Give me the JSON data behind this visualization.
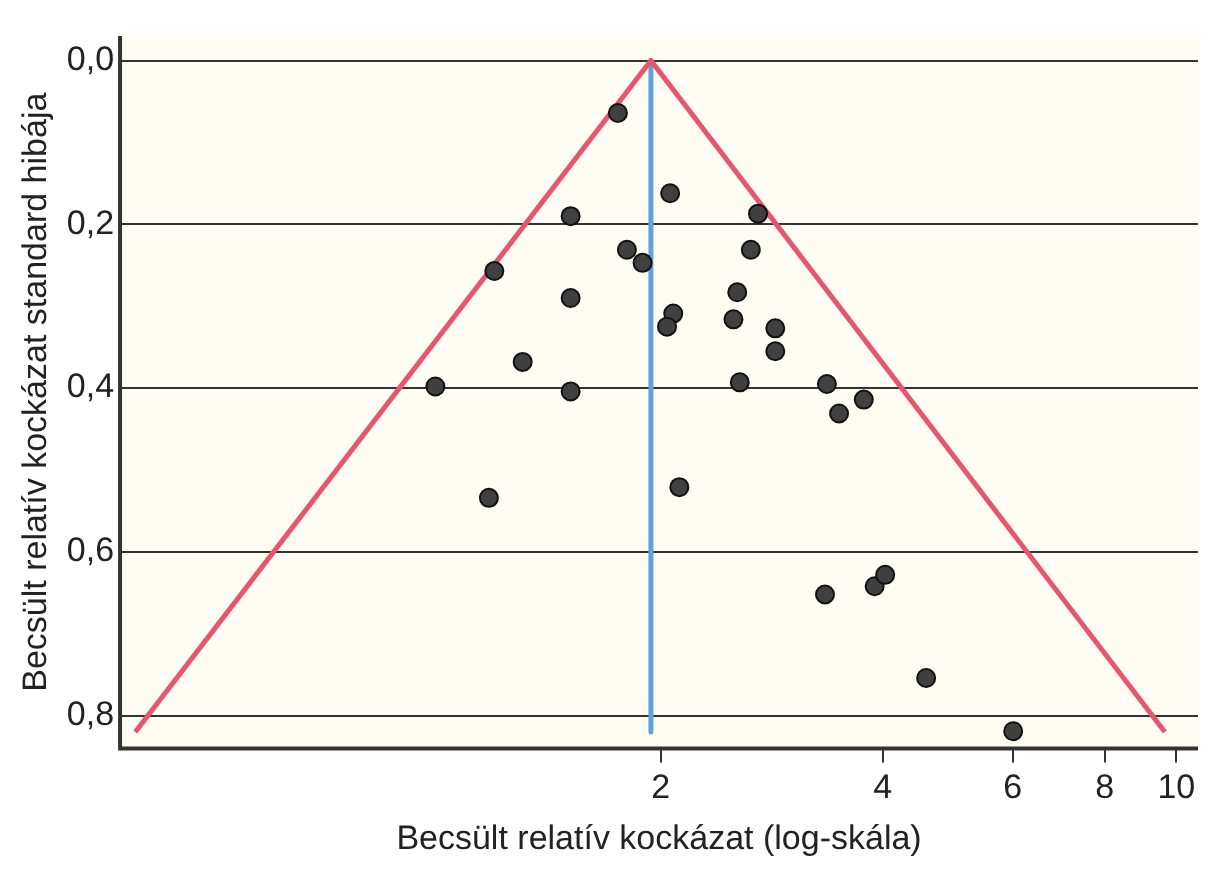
{
  "chart_data": {
    "type": "scatter",
    "xlabel": "Becsült relatív kockázat (log-skála)",
    "ylabel": "Becsült relatív kockázat standard hibája",
    "log": "x",
    "grid": "y",
    "legend": false,
    "xlim": [
      0.37,
      10.7
    ],
    "xticks": [
      2,
      4,
      6,
      8,
      10
    ],
    "ylim": [
      0.84,
      -0.03
    ],
    "yticks": [
      {
        "value": 0,
        "label": "0,0"
      },
      {
        "value": 0.2,
        "label": "0,2"
      },
      {
        "value": 0.4,
        "label": "0,4"
      },
      {
        "value": 0.6,
        "label": "0,6"
      },
      {
        "value": 0.8,
        "label": "0,8"
      }
    ],
    "series": [
      {
        "marker": "circle",
        "color": "#404040",
        "x": [
          1.75,
          1.51,
          1.8,
          1.89,
          1.19,
          1.51,
          1.3,
          0.99,
          1.51,
          2.06,
          2.71,
          2.65,
          2.54,
          2.08,
          2.04,
          2.51,
          2.86,
          2.86,
          2.56,
          3.36,
          3.77,
          3.49,
          2.12,
          3.34,
          3.9,
          4.03,
          4.58,
          6.01,
          1.17
        ],
        "values": [
          0.064,
          0.19,
          0.231,
          0.247,
          0.257,
          0.29,
          0.368,
          0.398,
          0.404,
          0.162,
          0.187,
          0.231,
          0.283,
          0.309,
          0.325,
          0.316,
          0.327,
          0.355,
          0.393,
          0.395,
          0.414,
          0.431,
          0.521,
          0.652,
          0.642,
          0.628,
          0.754,
          0.819,
          0.534
        ]
      },
      {
        "type": "line",
        "color": "#e8566e",
        "x": [
          0.388,
          1.94,
          9.65
        ],
        "values": [
          0.82,
          0,
          0.82
        ]
      },
      {
        "type": "line",
        "color": "#5aa5dc",
        "x": [
          1.94,
          1.94
        ],
        "values": [
          0,
          0.82
        ]
      }
    ]
  }
}
